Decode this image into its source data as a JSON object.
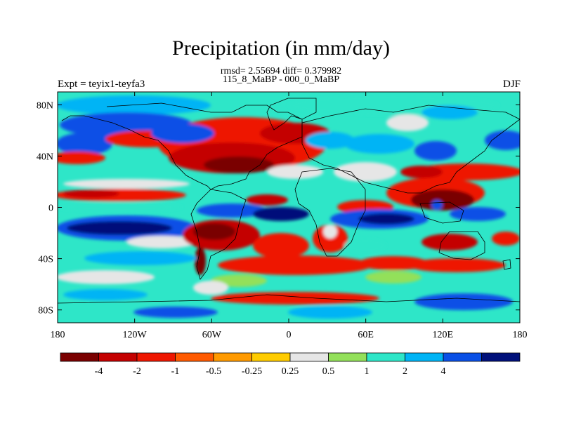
{
  "header": {
    "title": "Precipitation (in mm/day)",
    "stats": "rmsd= 2.55694 diff= 0.379982",
    "subtitle": "115_8_MaBP - 000_0_MaBP",
    "experiment": "Expt = teyix1-teyfa3",
    "season": "DJF"
  },
  "map": {
    "x_ticks": [
      "180",
      "120W",
      "60W",
      "0",
      "60E",
      "120E",
      "180"
    ],
    "y_ticks": [
      "80N",
      "40N",
      "0",
      "40S",
      "80S"
    ],
    "x_tick_values": [
      -180,
      -120,
      -60,
      0,
      60,
      120,
      180
    ],
    "y_tick_values": [
      80,
      40,
      0,
      -40,
      -80
    ],
    "lon_range": [
      -180,
      180
    ],
    "lat_range": [
      -90,
      90
    ]
  },
  "colorbar": {
    "labels": [
      "-4",
      "-2",
      "-1",
      "-0.5",
      "-0.25",
      "0.25",
      "0.5",
      "1",
      "2",
      "4"
    ],
    "colors": [
      "#7a0000",
      "#c40000",
      "#ee1600",
      "#ff5a00",
      "#ff9a00",
      "#ffcc00",
      "#e6e6e6",
      "#93e05a",
      "#2ee6c8",
      "#00b4f5",
      "#0a50e6",
      "#00107a"
    ]
  },
  "fields": {
    "land_outline_color": "#000000"
  }
}
